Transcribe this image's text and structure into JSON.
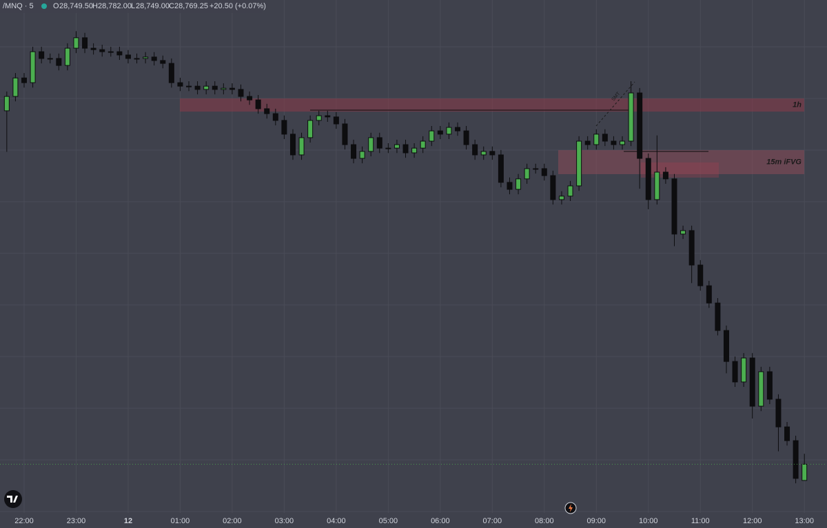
{
  "header": {
    "symbol": "/MNQ · 5",
    "open_label": "O",
    "open": "28,749.50",
    "high_label": "H",
    "high": "28,782.00",
    "low_label": "L",
    "low": "28,749.00",
    "close_label": "C",
    "close": "28,769.25",
    "change": "+20.50 (+0.07%)"
  },
  "chart_data": {
    "type": "candlestick",
    "categories": [
      null,
      null,
      "22:00",
      null,
      null,
      null,
      null,
      null,
      "23:00",
      null,
      null,
      null,
      null,
      null,
      "12",
      null,
      null,
      null,
      null,
      null,
      "01:00",
      null,
      null,
      null,
      null,
      null,
      "02:00",
      null,
      null,
      null,
      null,
      null,
      "03:00",
      null,
      null,
      null,
      null,
      null,
      "04:00",
      null,
      null,
      null,
      null,
      null,
      "05:00",
      null,
      null,
      null,
      null,
      null,
      "06:00",
      null,
      null,
      null,
      null,
      null,
      "07:00",
      null,
      null,
      null,
      null,
      null,
      "08:00",
      null,
      null,
      null,
      null,
      null,
      "09:00",
      null,
      null,
      null,
      null,
      null,
      "10:00",
      null,
      null,
      null,
      null,
      null,
      "11:00",
      null,
      null,
      null,
      null,
      null,
      "12:00",
      null,
      null,
      null,
      null,
      null,
      "13:00"
    ],
    "open": [
      29200,
      29217.5,
      29240,
      29234.25,
      29272,
      29263.75,
      29263.75,
      29255.25,
      29276.25,
      29289,
      29276.25,
      29274.5,
      29272,
      29272,
      29268,
      29263.75,
      29263.75,
      29265.5,
      29261.25,
      29257.75,
      29234.25,
      29230,
      29230,
      29226,
      29230,
      29226,
      29227.5,
      29226,
      29217.5,
      29213.25,
      29202.5,
      29196.5,
      29188.25,
      29171.5,
      29146.25,
      29167.25,
      29188.25,
      29194,
      29192.5,
      29184,
      29158.75,
      29142,
      29150.5,
      29167.25,
      29154.5,
      29154.5,
      29158.75,
      29148.75,
      29154.5,
      29163,
      29175.5,
      29171.5,
      29179.75,
      29175.5,
      29158.75,
      29146.25,
      29150.5,
      29146.25,
      29112.75,
      29104.25,
      29117,
      29129.5,
      29129.5,
      29121,
      29091.75,
      29096,
      29108.5,
      29163,
      29158.75,
      29171.5,
      29163,
      29158.75,
      29163,
      29221.75,
      29142,
      29091.75,
      29125.25,
      29117,
      29049.75,
      29054,
      29012,
      28986.75,
      28965.75,
      28932.25,
      28894.5,
      28869.5,
      28898.75,
      28840,
      28882,
      28848.5,
      28814.75,
      28798,
      28749.5
    ],
    "high": [
      29223.5,
      29246,
      29246,
      29278,
      29278,
      29269.75,
      29269.75,
      29282.25,
      29297,
      29295,
      29282.25,
      29280.5,
      29278,
      29278,
      29274,
      29269.75,
      29271.5,
      29271.5,
      29267.25,
      29263.75,
      29240.25,
      29236,
      29236,
      29236,
      29236,
      29233.5,
      29233.5,
      29232,
      29223.5,
      29219.25,
      29208.5,
      29202.5,
      29194.25,
      29177.5,
      29173.25,
      29194.25,
      29200,
      29200,
      29198.5,
      29190,
      29164.75,
      29156.5,
      29173.25,
      29173.25,
      29160.5,
      29164.75,
      29164.75,
      29160.5,
      29169,
      29181.5,
      29181.5,
      29185.75,
      29185.75,
      29181.5,
      29164.75,
      29156.5,
      29156.5,
      29152.25,
      29118.75,
      29123,
      29135.5,
      29135.5,
      29135.5,
      29127,
      29102,
      29114.5,
      29169,
      29169,
      29177.5,
      29177.5,
      29169,
      29169,
      29236,
      29227.75,
      29148,
      29170,
      29131.25,
      29123,
      29060,
      29060,
      29018,
      28992.75,
      28971.75,
      28938.25,
      28900.5,
      28904.75,
      28904.75,
      28888,
      28888,
      28854.5,
      28820.75,
      28804,
      28782
    ],
    "low": [
      29150,
      29211.5,
      29228.25,
      29228.25,
      29257.75,
      29257.75,
      29249.25,
      29249.25,
      29270.25,
      29270.25,
      29268.5,
      29266,
      29266,
      29262,
      29257.75,
      29257.75,
      29257.75,
      29255.25,
      29251.75,
      29228.25,
      29224,
      29224,
      29220,
      29220,
      29220,
      29220,
      29220,
      29211.5,
      29207.25,
      29196.5,
      29190.5,
      29182.25,
      29165.5,
      29140.25,
      29140.25,
      29161.25,
      29182.25,
      29186.5,
      29178,
      29152.75,
      29136,
      29136,
      29144.5,
      29148.5,
      29148.5,
      29148.5,
      29142.75,
      29142.75,
      29148.5,
      29157,
      29165.5,
      29165.5,
      29169.5,
      29152.75,
      29140.25,
      29140.25,
      29140.25,
      29106.75,
      29098.25,
      29098.25,
      29111,
      29123.5,
      29115,
      29085.75,
      29085.75,
      29090,
      29102.5,
      29152.75,
      29152.75,
      29157,
      29152.75,
      29152.75,
      29157,
      29105,
      29080,
      29085.75,
      29111,
      29035,
      29043.75,
      28990,
      28980.75,
      28959.75,
      28926.25,
      28880,
      28863.5,
      28863.5,
      28825,
      28834,
      28842.5,
      28785,
      28792,
      28746,
      28749
    ],
    "close": [
      29217.5,
      29240,
      29234.25,
      29272,
      29263.75,
      29263.75,
      29255.25,
      29276.25,
      29289,
      29276.25,
      29274.5,
      29272,
      29272,
      29268,
      29263.75,
      29263.75,
      29265.5,
      29261.25,
      29257.75,
      29234.25,
      29230,
      29230,
      29226,
      29230,
      29226,
      29227.5,
      29226,
      29217.5,
      29213.25,
      29202.5,
      29196.5,
      29188.25,
      29171.5,
      29146.25,
      29167.25,
      29188.25,
      29194,
      29192.5,
      29184,
      29158.75,
      29142,
      29150.5,
      29167.25,
      29154.5,
      29154.5,
      29158.75,
      29148.75,
      29154.5,
      29163,
      29175.5,
      29171.5,
      29179.75,
      29175.5,
      29158.75,
      29146.25,
      29150.5,
      29146.25,
      29112.75,
      29104.25,
      29117,
      29129.5,
      29129.5,
      29121,
      29091.75,
      29096,
      29108.5,
      29163,
      29158.75,
      29171.5,
      29163,
      29158.75,
      29163,
      29221.75,
      29142,
      29091.75,
      29125.25,
      29117,
      29049.75,
      29054,
      29012,
      28986.75,
      28965.75,
      28932.25,
      28894.5,
      28869.5,
      28898.75,
      28840,
      28882,
      28848.5,
      28814.75,
      28798,
      28752,
      28769.25
    ],
    "up_color": "#4caf50",
    "down_color": "#0d0d0f",
    "ylim": [
      28710,
      29335
    ],
    "zones": [
      {
        "label": "1h",
        "low": 29199,
        "high": 29215,
        "color": "#8a3a48"
      },
      {
        "label": "15m iFVG",
        "low": 29122.75,
        "high": 29152,
        "color": "#8a4a58"
      }
    ],
    "grid": true
  }
}
